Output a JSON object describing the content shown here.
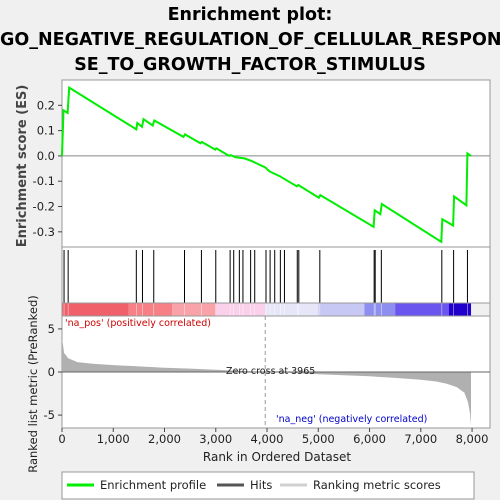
{
  "chart_data": {
    "type": "line",
    "title_lines": [
      "Enrichment plot:",
      "GO_NEGATIVE_REGULATION_OF_CELLULAR_RESPON",
      "SE_TO_GROWTH_FACTOR_STIMULUS"
    ],
    "es_panel": {
      "ylabel": "Enrichment score (ES)",
      "ylim": [
        -0.36,
        0.3
      ],
      "yticks": [
        -0.3,
        -0.2,
        -0.1,
        0.0,
        0.1,
        0.2
      ],
      "ytick_labels": [
        "-0.3",
        "-0.2",
        "-0.1",
        "0.0",
        "0.1",
        "0.2"
      ],
      "line_color": "#00ee00",
      "enrichment_profile": [
        [
          0,
          0.0
        ],
        [
          30,
          0.18
        ],
        [
          110,
          0.17
        ],
        [
          140,
          0.27
        ],
        [
          1450,
          0.105
        ],
        [
          1470,
          0.13
        ],
        [
          1560,
          0.115
        ],
        [
          1590,
          0.145
        ],
        [
          1770,
          0.12
        ],
        [
          1800,
          0.14
        ],
        [
          2370,
          0.075
        ],
        [
          2400,
          0.085
        ],
        [
          2700,
          0.05
        ],
        [
          2730,
          0.055
        ],
        [
          2990,
          0.025
        ],
        [
          3010,
          0.03
        ],
        [
          3260,
          0.0
        ],
        [
          3290,
          0.003
        ],
        [
          3380,
          -0.005
        ],
        [
          3480,
          -0.008
        ],
        [
          3560,
          -0.01
        ],
        [
          3700,
          -0.02
        ],
        [
          3780,
          -0.028
        ],
        [
          3965,
          -0.045
        ],
        [
          4040,
          -0.06
        ],
        [
          4140,
          -0.07
        ],
        [
          4250,
          -0.08
        ],
        [
          4330,
          -0.09
        ],
        [
          4580,
          -0.12
        ],
        [
          4610,
          -0.115
        ],
        [
          5010,
          -0.165
        ],
        [
          5040,
          -0.155
        ],
        [
          6080,
          -0.28
        ],
        [
          6100,
          -0.215
        ],
        [
          6210,
          -0.23
        ],
        [
          6240,
          -0.19
        ],
        [
          7400,
          -0.34
        ],
        [
          7420,
          -0.25
        ],
        [
          7630,
          -0.275
        ],
        [
          7650,
          -0.16
        ],
        [
          7890,
          -0.195
        ],
        [
          7910,
          0.01
        ],
        [
          7980,
          0.0
        ]
      ]
    },
    "hits_panel": {
      "hit_color": "#000000",
      "hits": [
        40,
        120,
        1450,
        1570,
        1790,
        2390,
        2720,
        3000,
        3280,
        3350,
        3460,
        3530,
        3680,
        3760,
        3980,
        4060,
        4150,
        4260,
        4340,
        4590,
        4620,
        5030,
        6090,
        6110,
        6230,
        7410,
        7640,
        7910
      ],
      "color_bar": [
        {
          "from": 0,
          "to": 1300,
          "color": "#f0606a"
        },
        {
          "from": 1300,
          "to": 2150,
          "color": "#f77f86"
        },
        {
          "from": 2150,
          "to": 3000,
          "color": "#f9a2a8"
        },
        {
          "from": 3000,
          "to": 3965,
          "color": "#fbd0ea"
        },
        {
          "from": 3965,
          "to": 5000,
          "color": "#e6e6f8"
        },
        {
          "from": 5000,
          "to": 5900,
          "color": "#c8c8f4"
        },
        {
          "from": 5900,
          "to": 6500,
          "color": "#8e8ef0"
        },
        {
          "from": 6500,
          "to": 7550,
          "color": "#6a55ee"
        },
        {
          "from": 7550,
          "to": 7980,
          "color": "#2200cc"
        }
      ]
    },
    "metric_panel": {
      "ylabel": "Ranked list metric (PreRanked)",
      "xlabel": "Rank in Ordered Dataset",
      "ylim": [
        -6.5,
        6.5
      ],
      "yticks": [
        -5,
        0,
        5
      ],
      "ytick_labels": [
        "-5",
        "0",
        "5"
      ],
      "xlim": [
        0,
        8350
      ],
      "xticks": [
        0,
        1000,
        2000,
        3000,
        4000,
        5000,
        6000,
        7000,
        8000
      ],
      "xtick_labels": [
        "0",
        "1,000",
        "2,000",
        "3,000",
        "4,000",
        "5,000",
        "6,000",
        "7,000",
        "8,000"
      ],
      "fill_color": "#b0b0b0",
      "zero_cross": 3965,
      "metric_curve": [
        [
          0,
          4.0
        ],
        [
          40,
          2.2
        ],
        [
          120,
          1.6
        ],
        [
          300,
          1.15
        ],
        [
          600,
          0.95
        ],
        [
          1000,
          0.8
        ],
        [
          1500,
          0.65
        ],
        [
          2000,
          0.5
        ],
        [
          2500,
          0.4
        ],
        [
          3000,
          0.25
        ],
        [
          3500,
          0.12
        ],
        [
          3965,
          0.0
        ],
        [
          4500,
          -0.12
        ],
        [
          5000,
          -0.25
        ],
        [
          5500,
          -0.37
        ],
        [
          6000,
          -0.5
        ],
        [
          6500,
          -0.68
        ],
        [
          7000,
          -0.9
        ],
        [
          7300,
          -1.1
        ],
        [
          7500,
          -1.35
        ],
        [
          7700,
          -1.75
        ],
        [
          7850,
          -2.4
        ],
        [
          7920,
          -3.5
        ],
        [
          7960,
          -4.8
        ],
        [
          7980,
          -6.2
        ]
      ],
      "annotations": {
        "pos_label": "'na_pos' (positively correlated)",
        "neg_label": "'na_neg' (negatively correlated)",
        "zero_cross_label": "Zero cross at 3965",
        "pos_color": "#cc0000",
        "neg_color": "#0000cc"
      }
    },
    "legend": {
      "entries": [
        "Enrichment profile",
        "Hits",
        "Ranking metric scores"
      ],
      "colors": [
        "#00ee00",
        "#555555",
        "#d0d0d0"
      ]
    }
  }
}
